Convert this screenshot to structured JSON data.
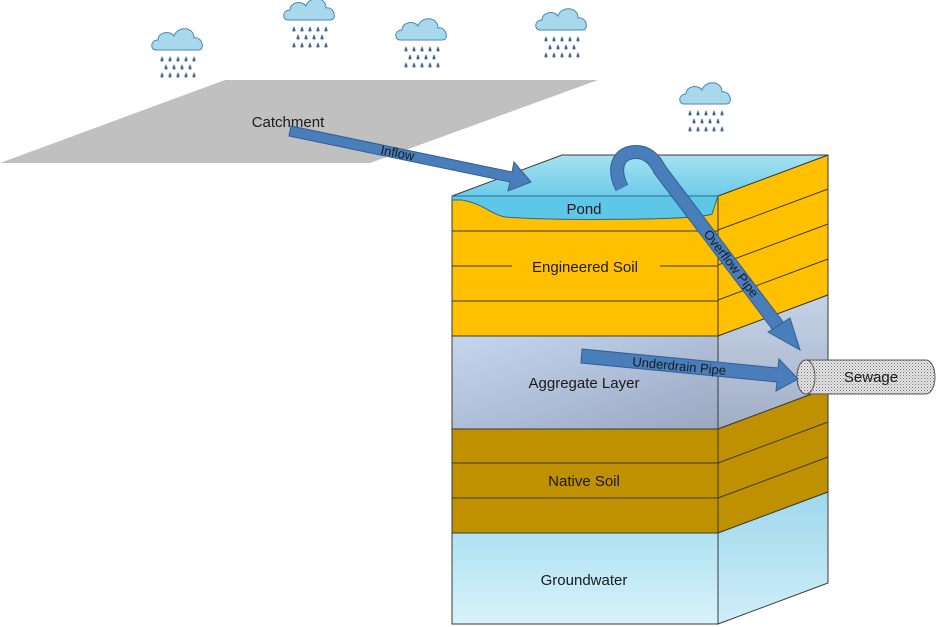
{
  "labels": {
    "catchment": "Catchment",
    "inflow": "Inflow",
    "pond": "Pond",
    "overflow_pipe": "Overflow Pipe",
    "engineered_soil": "Engineered Soil",
    "underdrain_pipe": "Underdrain Pipe",
    "aggregate_layer": "Aggregate Layer",
    "sewage": "Sewage",
    "native_soil": "Native Soil",
    "groundwater": "Groundwater"
  },
  "icons": {
    "cloud": "rain-cloud-icon",
    "arrow": "arrow-icon"
  },
  "colors": {
    "catchment": "#c0c0c0",
    "water": "#7fd4ec",
    "engineered_soil": "#ffc000",
    "aggregate": "#b4c4dc",
    "native_soil": "#bf9000",
    "groundwater": "#b8e6f4",
    "arrow": "#4a7ebb",
    "raindrop": "#4a6a9a",
    "cloud": "#a8d8ec"
  }
}
